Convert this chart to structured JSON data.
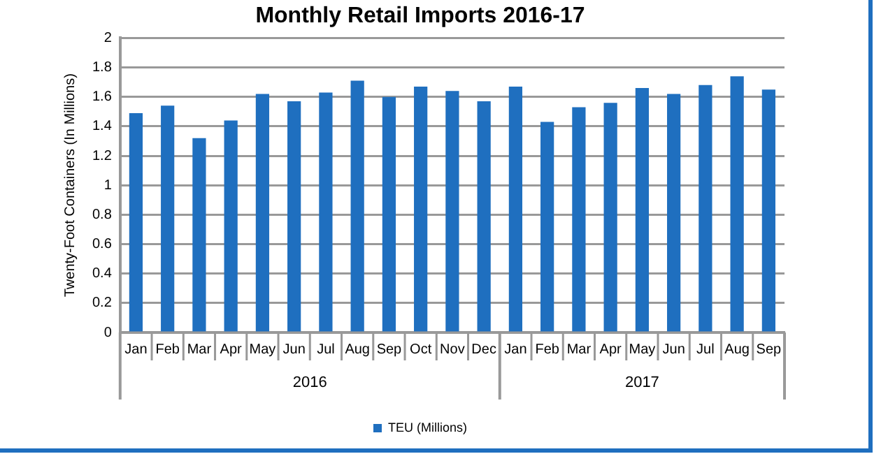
{
  "chart_data": {
    "type": "bar",
    "title": "Monthly Retail Imports 2016-17",
    "ylabel": "Twenty-Foot Containers (In Millions)",
    "categories": [
      "Jan",
      "Feb",
      "Mar",
      "Apr",
      "May",
      "Jun",
      "Jul",
      "Aug",
      "Sep",
      "Oct",
      "Nov",
      "Dec",
      "Jan",
      "Feb",
      "Mar",
      "Apr",
      "May",
      "Jun",
      "Jul",
      "Aug",
      "Sep"
    ],
    "series": [
      {
        "name": "TEU (Millions)",
        "color": "#1f6fbf",
        "values": [
          1.49,
          1.54,
          1.32,
          1.44,
          1.62,
          1.57,
          1.63,
          1.71,
          1.6,
          1.67,
          1.64,
          1.57,
          1.67,
          1.43,
          1.53,
          1.56,
          1.66,
          1.62,
          1.68,
          1.74,
          1.65
        ]
      }
    ],
    "annotations": [
      "2016",
      "2017"
    ],
    "ylim": [
      0,
      2
    ],
    "yticks": [
      0,
      0.2,
      0.4,
      0.6,
      0.8,
      1,
      1.2,
      1.4,
      1.6,
      1.8,
      2
    ],
    "grid": "y",
    "legend": "bottom"
  }
}
